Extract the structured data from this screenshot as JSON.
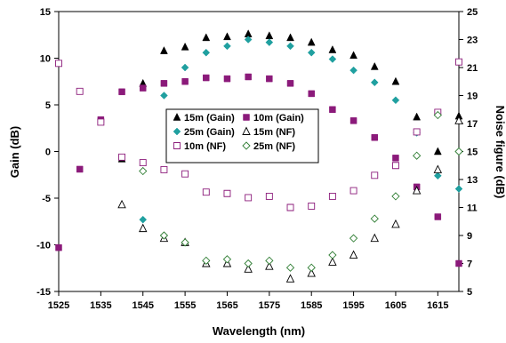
{
  "chart_data": {
    "type": "scatter",
    "xlabel": "Wavelength (nm)",
    "ylabel": "Gain (dB)",
    "y2label": "Noise figure (dB)",
    "xlim": [
      1525,
      1620
    ],
    "ylim": [
      -15,
      15
    ],
    "y2lim": [
      5,
      25
    ],
    "xticks": [
      "1525",
      "1535",
      "1545",
      "1555",
      "1565",
      "1575",
      "1585",
      "1595",
      "1605",
      "1615"
    ],
    "yticks": [
      "-15",
      "-10",
      "-5",
      "0",
      "5",
      "10",
      "15"
    ],
    "y2ticks": [
      "5",
      "7",
      "9",
      "11",
      "13",
      "15",
      "17",
      "19",
      "21",
      "23",
      "25"
    ],
    "grid": false,
    "legend_position": "center",
    "series": [
      {
        "name": "15m (Gain)",
        "axis": "left",
        "marker": "triangle",
        "fill": "filled",
        "color": "#000000",
        "points": [
          [
            1540,
            -0.8
          ],
          [
            1545,
            7.3
          ],
          [
            1550,
            10.8
          ],
          [
            1555,
            11.2
          ],
          [
            1560,
            12.2
          ],
          [
            1565,
            12.3
          ],
          [
            1570,
            12.6
          ],
          [
            1575,
            12.4
          ],
          [
            1580,
            12.2
          ],
          [
            1585,
            11.7
          ],
          [
            1590,
            10.9
          ],
          [
            1595,
            10.3
          ],
          [
            1600,
            9.1
          ],
          [
            1605,
            7.5
          ],
          [
            1610,
            3.7
          ],
          [
            1615,
            0.0
          ],
          [
            1620,
            3.8
          ]
        ]
      },
      {
        "name": "10m (Gain)",
        "axis": "left",
        "marker": "square",
        "fill": "filled",
        "color": "#8B1A7A",
        "points": [
          [
            1525,
            -10.3
          ],
          [
            1530,
            -1.9
          ],
          [
            1535,
            3.4
          ],
          [
            1540,
            6.4
          ],
          [
            1545,
            6.8
          ],
          [
            1550,
            7.3
          ],
          [
            1555,
            7.5
          ],
          [
            1560,
            7.9
          ],
          [
            1565,
            7.8
          ],
          [
            1570,
            8.0
          ],
          [
            1575,
            7.8
          ],
          [
            1580,
            7.3
          ],
          [
            1585,
            6.2
          ],
          [
            1590,
            4.5
          ],
          [
            1595,
            3.3
          ],
          [
            1600,
            1.5
          ],
          [
            1605,
            -0.7
          ],
          [
            1610,
            -3.8
          ],
          [
            1615,
            -7.0
          ],
          [
            1620,
            -12.0
          ]
        ]
      },
      {
        "name": "25m (Gain)",
        "axis": "left",
        "marker": "diamond",
        "fill": "filled",
        "color": "#20A0A0",
        "points": [
          [
            1545,
            -7.3
          ],
          [
            1550,
            6.0
          ],
          [
            1555,
            9.0
          ],
          [
            1560,
            10.6
          ],
          [
            1565,
            11.3
          ],
          [
            1570,
            12.0
          ],
          [
            1575,
            11.7
          ],
          [
            1580,
            11.3
          ],
          [
            1585,
            10.6
          ],
          [
            1590,
            9.9
          ],
          [
            1595,
            8.7
          ],
          [
            1600,
            7.4
          ],
          [
            1605,
            5.5
          ],
          [
            1610,
            2.0
          ],
          [
            1615,
            -2.6
          ],
          [
            1620,
            -4.0
          ]
        ]
      },
      {
        "name": "15m (NF)",
        "axis": "right",
        "marker": "triangle",
        "fill": "open",
        "color": "#000000",
        "points": [
          [
            1540,
            11.2
          ],
          [
            1545,
            9.5
          ],
          [
            1550,
            8.8
          ],
          [
            1555,
            8.5
          ],
          [
            1560,
            7.0
          ],
          [
            1565,
            7.0
          ],
          [
            1570,
            6.6
          ],
          [
            1575,
            6.8
          ],
          [
            1580,
            5.9
          ],
          [
            1585,
            6.3
          ],
          [
            1590,
            7.1
          ],
          [
            1595,
            7.6
          ],
          [
            1600,
            8.8
          ],
          [
            1605,
            9.8
          ],
          [
            1610,
            12.2
          ],
          [
            1615,
            13.7
          ],
          [
            1620,
            17.2
          ]
        ]
      },
      {
        "name": "10m (NF)",
        "axis": "right",
        "marker": "square",
        "fill": "open",
        "color": "#8B1A7A",
        "points": [
          [
            1525,
            21.3
          ],
          [
            1530,
            19.3
          ],
          [
            1535,
            17.1
          ],
          [
            1540,
            14.6
          ],
          [
            1545,
            14.2
          ],
          [
            1550,
            13.7
          ],
          [
            1555,
            13.4
          ],
          [
            1560,
            12.1
          ],
          [
            1565,
            12.0
          ],
          [
            1570,
            11.7
          ],
          [
            1575,
            11.8
          ],
          [
            1580,
            11.0
          ],
          [
            1585,
            11.1
          ],
          [
            1590,
            11.8
          ],
          [
            1595,
            12.2
          ],
          [
            1600,
            13.3
          ],
          [
            1605,
            14.0
          ],
          [
            1610,
            16.4
          ],
          [
            1615,
            17.8
          ],
          [
            1620,
            21.4
          ]
        ]
      },
      {
        "name": "25m (NF)",
        "axis": "right",
        "marker": "diamond",
        "fill": "open",
        "color": "#2E7D32",
        "points": [
          [
            1545,
            13.6
          ],
          [
            1550,
            9.0
          ],
          [
            1555,
            8.5
          ],
          [
            1560,
            7.2
          ],
          [
            1565,
            7.3
          ],
          [
            1570,
            7.0
          ],
          [
            1575,
            7.2
          ],
          [
            1580,
            6.7
          ],
          [
            1585,
            6.7
          ],
          [
            1590,
            7.6
          ],
          [
            1595,
            8.8
          ],
          [
            1600,
            10.2
          ],
          [
            1605,
            11.8
          ],
          [
            1610,
            14.7
          ],
          [
            1615,
            17.6
          ],
          [
            1620,
            15.0
          ]
        ]
      }
    ]
  }
}
